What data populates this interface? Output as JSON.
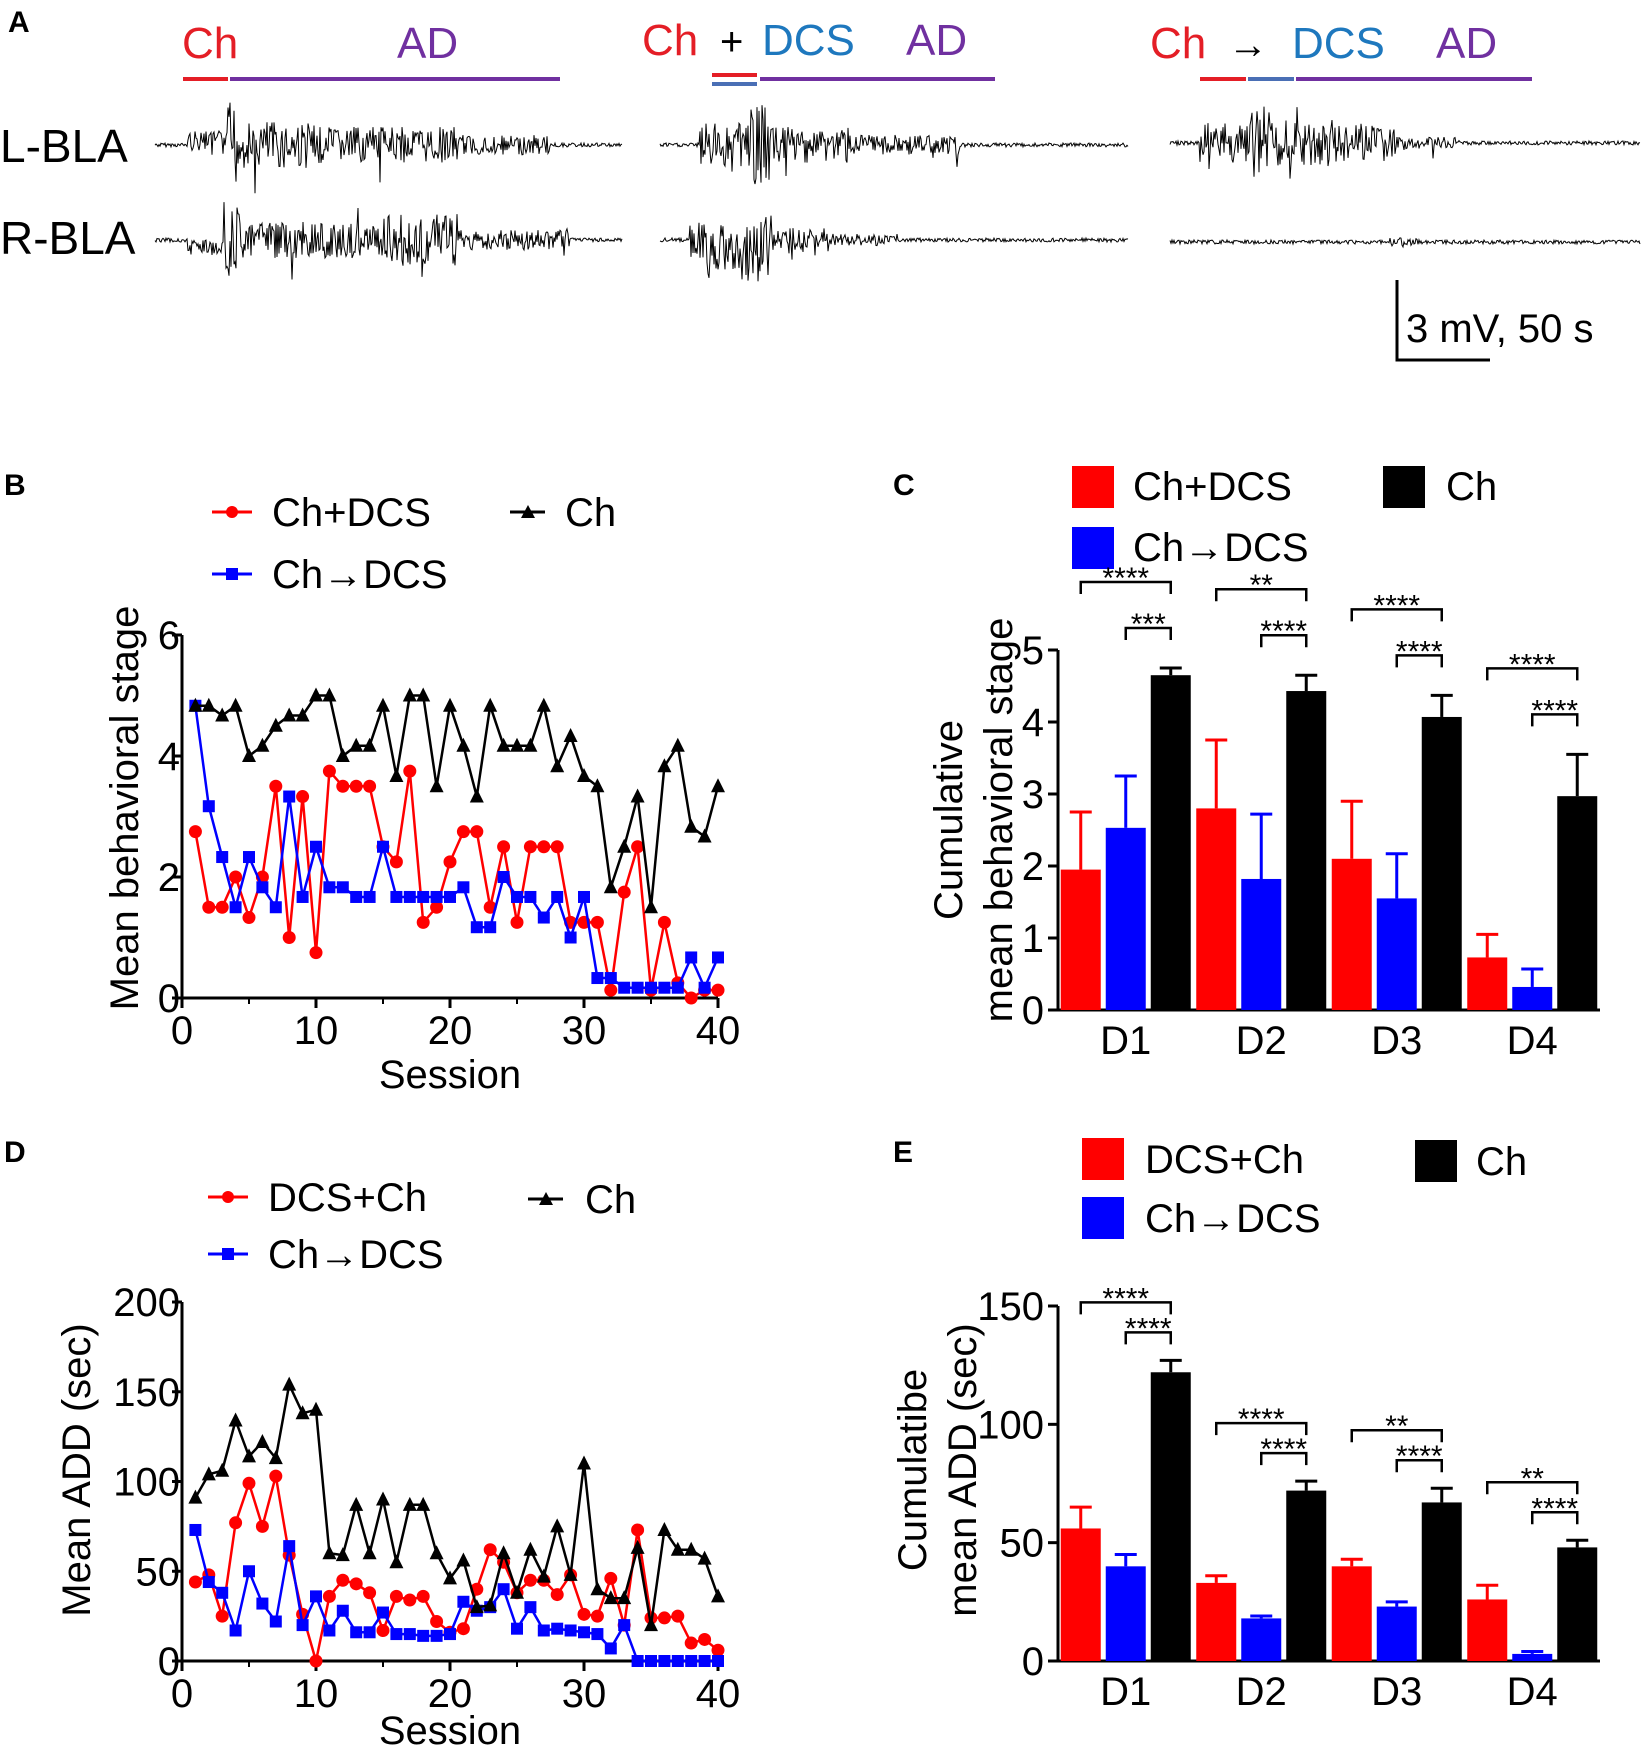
{
  "colors": {
    "red": "#ff0000",
    "blue": "#0000ff",
    "black": "#000000",
    "trace_red": "#e41e26",
    "trace_blue": "#1e78be",
    "trace_purple": "#7030a0",
    "trace_steel": "#4a6fb5"
  },
  "panelA": {
    "letter": "A",
    "groups": [
      {
        "labels": [
          "Ch",
          "AD"
        ]
      },
      {
        "labels": [
          "Ch",
          "+",
          "DCS",
          "AD"
        ]
      },
      {
        "labels": [
          "Ch",
          "→",
          "DCS",
          "AD"
        ]
      }
    ],
    "traces": [
      "L-BLA",
      "R-BLA"
    ],
    "scale": "3 mV, 50 s"
  },
  "chart_data": [
    {
      "panel": "B",
      "type": "line",
      "xlabel": "Session",
      "ylabel": "Mean behavioral stage",
      "xlim": [
        0,
        40
      ],
      "ylim": [
        0,
        6
      ],
      "xticks": [
        "0",
        "10",
        "20",
        "30",
        "40"
      ],
      "yticks": [
        "0",
        "2",
        "4",
        "6"
      ],
      "x": [
        1,
        2,
        3,
        4,
        5,
        6,
        7,
        8,
        9,
        10,
        11,
        12,
        13,
        14,
        15,
        16,
        17,
        18,
        19,
        20,
        21,
        22,
        23,
        24,
        25,
        26,
        27,
        28,
        29,
        30,
        31,
        32,
        33,
        34,
        35,
        36,
        37,
        38,
        39,
        40
      ],
      "series": [
        {
          "name": "Ch+DCS",
          "color": "red",
          "marker": "circle",
          "values": [
            2.75,
            1.5,
            1.5,
            2.0,
            1.33,
            2.0,
            3.5,
            1.0,
            3.33,
            0.75,
            3.75,
            3.5,
            3.5,
            3.5,
            2.5,
            2.25,
            3.75,
            1.25,
            1.5,
            2.25,
            2.75,
            2.75,
            1.5,
            2.5,
            1.25,
            2.5,
            2.5,
            2.5,
            1.25,
            1.25,
            1.25,
            0.13,
            1.75,
            2.5,
            0.13,
            1.25,
            0.25,
            0.0,
            0.13,
            0.13
          ]
        },
        {
          "name": "Ch→DCS",
          "color": "blue",
          "marker": "square",
          "values": [
            4.83,
            3.17,
            2.33,
            1.5,
            2.33,
            1.83,
            1.5,
            3.33,
            1.67,
            2.5,
            1.83,
            1.83,
            1.67,
            1.67,
            2.5,
            1.67,
            1.67,
            1.67,
            1.67,
            1.67,
            1.83,
            1.17,
            1.17,
            2.0,
            1.67,
            1.67,
            1.33,
            1.67,
            1.0,
            1.67,
            0.33,
            0.33,
            0.17,
            0.17,
            0.17,
            0.17,
            0.17,
            0.67,
            0.17,
            0.67
          ]
        },
        {
          "name": "Ch",
          "color": "black",
          "marker": "triangle",
          "values": [
            4.83,
            4.83,
            4.67,
            4.83,
            4.0,
            4.17,
            4.5,
            4.67,
            4.67,
            5.0,
            5.0,
            4.0,
            4.17,
            4.17,
            4.83,
            3.67,
            5.0,
            5.0,
            3.5,
            4.83,
            4.17,
            3.33,
            4.83,
            4.17,
            4.17,
            4.17,
            4.83,
            3.83,
            4.33,
            3.67,
            3.5,
            1.83,
            2.5,
            3.33,
            1.5,
            3.83,
            4.17,
            2.83,
            2.67,
            3.5
          ]
        }
      ]
    },
    {
      "panel": "C",
      "type": "bar",
      "ylabel_lines": [
        "Cumulative",
        "mean behavioral stage"
      ],
      "ylim": [
        0,
        5
      ],
      "yticks": [
        "0",
        "1",
        "2",
        "3",
        "4",
        "5"
      ],
      "categories": [
        "D1",
        "D2",
        "D3",
        "D4"
      ],
      "series": [
        {
          "name": "Ch+DCS",
          "color": "red",
          "values": [
            1.95,
            2.8,
            2.1,
            0.73
          ],
          "errors": [
            0.8,
            0.95,
            0.8,
            0.32
          ]
        },
        {
          "name": "Ch→DCS",
          "color": "blue",
          "values": [
            2.53,
            1.82,
            1.55,
            0.32
          ],
          "errors": [
            0.72,
            0.9,
            0.62,
            0.25
          ]
        },
        {
          "name": "Ch",
          "color": "black",
          "values": [
            4.65,
            4.43,
            4.07,
            2.97
          ],
          "errors": [
            0.1,
            0.22,
            0.3,
            0.58
          ]
        }
      ],
      "significance": [
        {
          "category": "D1",
          "outer": "****",
          "inner": "***"
        },
        {
          "category": "D2",
          "outer": "**",
          "inner": "****"
        },
        {
          "category": "D3",
          "outer": "****",
          "inner": "****"
        },
        {
          "category": "D4",
          "outer": "****",
          "inner": "****"
        }
      ]
    },
    {
      "panel": "D",
      "type": "line",
      "xlabel": "Session",
      "ylabel": "Mean ADD (sec)",
      "xlim": [
        0,
        40
      ],
      "ylim": [
        0,
        200
      ],
      "xticks": [
        "0",
        "10",
        "20",
        "30",
        "40"
      ],
      "yticks": [
        "0",
        "50",
        "100",
        "150",
        "200"
      ],
      "x": [
        1,
        2,
        3,
        4,
        5,
        6,
        7,
        8,
        9,
        10,
        11,
        12,
        13,
        14,
        15,
        16,
        17,
        18,
        19,
        20,
        21,
        22,
        23,
        24,
        25,
        26,
        27,
        28,
        29,
        30,
        31,
        32,
        33,
        34,
        35,
        36,
        37,
        38,
        39,
        40
      ],
      "series": [
        {
          "name": "DCS+Ch",
          "color": "red",
          "marker": "circle",
          "values": [
            44,
            48,
            25,
            77,
            99,
            75,
            103,
            59,
            26,
            0,
            36,
            45,
            43,
            38,
            17,
            36,
            34,
            36,
            22,
            16,
            18,
            40,
            62,
            55,
            38,
            45,
            45,
            37,
            48,
            26,
            25,
            46,
            20,
            73,
            24,
            24,
            25,
            10,
            12,
            6
          ]
        },
        {
          "name": "Ch→DCS",
          "color": "blue",
          "marker": "square",
          "values": [
            73,
            44,
            38,
            17,
            50,
            32,
            22,
            64,
            20,
            36,
            17,
            28,
            16,
            16,
            27,
            15,
            15,
            14,
            14,
            15,
            33,
            28,
            30,
            40,
            18,
            30,
            17,
            18,
            17,
            16,
            15,
            7,
            20,
            0,
            0,
            0,
            0,
            0,
            0,
            0
          ]
        },
        {
          "name": "Ch",
          "color": "black",
          "marker": "triangle",
          "values": [
            91,
            104,
            106,
            134,
            114,
            122,
            113,
            154,
            138,
            140,
            60,
            59,
            87,
            60,
            90,
            55,
            87,
            87,
            60,
            46,
            56,
            30,
            31,
            60,
            38,
            62,
            47,
            75,
            48,
            110,
            40,
            35,
            35,
            63,
            20,
            73,
            62,
            62,
            57,
            36
          ]
        }
      ]
    },
    {
      "panel": "E",
      "type": "bar",
      "ylabel_lines": [
        "Cumulatibe",
        "mean ADD (sec)"
      ],
      "ylim": [
        0,
        150
      ],
      "yticks": [
        "0",
        "50",
        "100",
        "150"
      ],
      "categories": [
        "D1",
        "D2",
        "D3",
        "D4"
      ],
      "series": [
        {
          "name": "DCS+Ch",
          "color": "red",
          "values": [
            56,
            33,
            40,
            26
          ],
          "errors": [
            9,
            3,
            3,
            6
          ]
        },
        {
          "name": "Ch→DCS",
          "color": "blue",
          "values": [
            40,
            18,
            23,
            3
          ],
          "errors": [
            5,
            1,
            2,
            1
          ]
        },
        {
          "name": "Ch",
          "color": "black",
          "values": [
            122,
            72,
            67,
            48
          ],
          "errors": [
            5,
            4,
            6,
            3
          ]
        }
      ],
      "significance": [
        {
          "category": "D1",
          "outer": "****",
          "inner": "****"
        },
        {
          "category": "D2",
          "outer": "****",
          "inner": "****"
        },
        {
          "category": "D3",
          "outer": "**",
          "inner": "****"
        },
        {
          "category": "D4",
          "outer": "**",
          "inner": "****"
        }
      ]
    }
  ]
}
